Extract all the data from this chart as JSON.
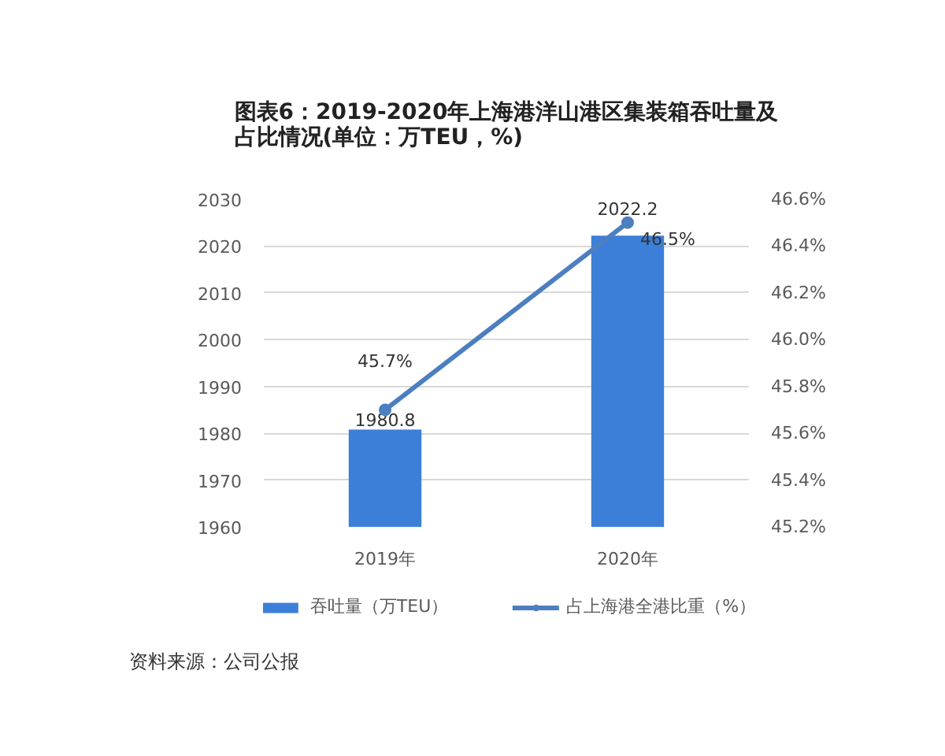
{
  "chart_data": {
    "type": "bar",
    "title": "图表6：2019-2020年上海港洋山港区集装箱吞吐量及占比情况(单位：万TEU，%)",
    "categories": [
      "2019年",
      "2020年"
    ],
    "series": [
      {
        "name": "吞吐量（万TEU）",
        "color": "#3c7fd9",
        "values": [
          1980.8,
          2022.2
        ],
        "value_labels": [
          "1980.8",
          "2022.2"
        ]
      },
      {
        "name": "占上海港全港比重（%）",
        "type": "line",
        "axis": "y2",
        "color": "#4c7fbf",
        "values": [
          45.7,
          46.5
        ],
        "value_labels": [
          "45.7%",
          "46.5%"
        ]
      }
    ],
    "ylim": [
      1960,
      2030
    ],
    "yticks": [
      1960,
      1970,
      1980,
      1990,
      2000,
      2010,
      2020,
      2030
    ],
    "y2lim": [
      45.2,
      46.6
    ],
    "y2ticks": [
      {
        "value": 45.2,
        "label": "45.2%"
      },
      {
        "value": 45.4,
        "label": "45.4%"
      },
      {
        "value": 45.6,
        "label": "45.6%"
      },
      {
        "value": 45.8,
        "label": "45.8%"
      },
      {
        "value": 46.0,
        "label": "46.0%"
      },
      {
        "value": 46.2,
        "label": "46.2%"
      },
      {
        "value": 46.4,
        "label": "46.4%"
      },
      {
        "value": 46.6,
        "label": "46.6%"
      }
    ],
    "grid": "y",
    "legend": "bottom",
    "marker": "circle",
    "line_style": "solid",
    "annotations": [
      "资料来源：公司公报"
    ]
  }
}
